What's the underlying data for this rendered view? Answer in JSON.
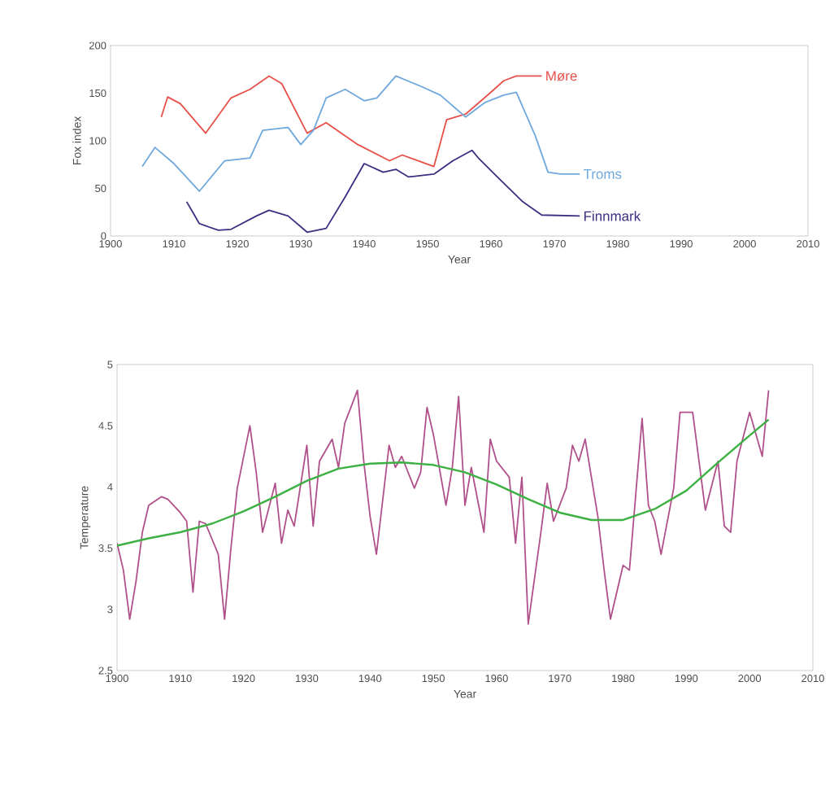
{
  "chart_data": [
    {
      "type": "line",
      "xlabel": "Year",
      "ylabel": "Fox index",
      "xlim": [
        1900,
        2010
      ],
      "ylim": [
        0,
        200
      ],
      "xticks": [
        1900,
        1910,
        1920,
        1930,
        1940,
        1950,
        1960,
        1970,
        1980,
        1990,
        2000,
        2010
      ],
      "yticks": [
        0,
        50,
        100,
        150,
        200
      ],
      "grid": false,
      "legend": false,
      "series": [
        {
          "name": "Møre",
          "color": "#e8504a",
          "x": [
            1908,
            1909,
            1911,
            1915,
            1919,
            1922,
            1925,
            1927,
            1931,
            1934,
            1939,
            1944,
            1946,
            1951,
            1953,
            1956,
            1960,
            1962,
            1964,
            1968
          ],
          "values": [
            125,
            146,
            139,
            108,
            145,
            154,
            168,
            160,
            108,
            119,
            96,
            79,
            85,
            73,
            122,
            128,
            151,
            163,
            168,
            168
          ]
        },
        {
          "name": "Troms",
          "color": "#6fa8dc",
          "x": [
            1905,
            1907,
            1910,
            1914,
            1918,
            1922,
            1924,
            1928,
            1930,
            1932,
            1934,
            1937,
            1940,
            1942,
            1945,
            1949,
            1952,
            1956,
            1959,
            1962,
            1964,
            1967,
            1969,
            1971,
            1974
          ],
          "values": [
            73,
            93,
            76,
            47,
            79,
            82,
            111,
            114,
            96,
            111,
            145,
            154,
            142,
            145,
            168,
            157,
            148,
            125,
            140,
            148,
            151,
            105,
            67,
            65,
            65
          ]
        },
        {
          "name": "Finnmark",
          "color": "#3a2f80",
          "x": [
            1912,
            1914,
            1917,
            1919,
            1923,
            1925,
            1928,
            1931,
            1934,
            1937,
            1940,
            1943,
            1945,
            1947,
            1951,
            1954,
            1957,
            1958,
            1961,
            1965,
            1968,
            1974
          ],
          "values": [
            36,
            13,
            6,
            7,
            21,
            27,
            21,
            4,
            8,
            41,
            76,
            67,
            70,
            62,
            65,
            79,
            90,
            82,
            62,
            36,
            22,
            21
          ]
        }
      ]
    },
    {
      "type": "line",
      "xlabel": "Year",
      "ylabel": "Temperature",
      "xlim": [
        1900,
        2010
      ],
      "ylim": [
        2.5,
        5
      ],
      "xticks": [
        1900,
        1910,
        1920,
        1930,
        1940,
        1950,
        1960,
        1970,
        1980,
        1990,
        2000,
        2010
      ],
      "yticks": [
        2.5,
        3,
        3.5,
        4,
        4.5,
        5
      ],
      "grid": false,
      "legend": false,
      "series": [
        {
          "color": "#b0508a",
          "x": [
            1900,
            1901,
            1902,
            1903,
            1904,
            1905,
            1907,
            1908,
            1910,
            1911,
            1912,
            1913,
            1914,
            1916,
            1917,
            1918,
            1919,
            1921,
            1922,
            1923,
            1925,
            1926,
            1927,
            1928,
            1930,
            1931,
            1932,
            1934,
            1935,
            1936,
            1938,
            1939,
            1940,
            1941,
            1943,
            1944,
            1945,
            1947,
            1948,
            1949,
            1950,
            1952,
            1953,
            1954,
            1955,
            1956,
            1958,
            1959,
            1960,
            1962,
            1963,
            1964,
            1965,
            1967,
            1968,
            1969,
            1971,
            1972,
            1973,
            1974,
            1976,
            1977,
            1978,
            1980,
            1981,
            1983,
            1984,
            1985,
            1986,
            1988,
            1989,
            1991,
            1992,
            1993,
            1995,
            1996,
            1997,
            1998,
            2000,
            2001,
            2002,
            2003
          ],
          "values": [
            3.54,
            3.32,
            2.92,
            3.23,
            3.63,
            3.85,
            3.92,
            3.9,
            3.79,
            3.72,
            3.14,
            3.72,
            3.7,
            3.45,
            2.92,
            3.5,
            3.99,
            4.5,
            4.12,
            3.63,
            4.03,
            3.54,
            3.81,
            3.68,
            4.34,
            3.68,
            4.21,
            4.39,
            4.16,
            4.52,
            4.79,
            4.21,
            3.76,
            3.45,
            4.34,
            4.16,
            4.25,
            3.99,
            4.12,
            4.65,
            4.43,
            3.85,
            4.16,
            4.74,
            3.85,
            4.16,
            3.63,
            4.39,
            4.21,
            4.08,
            3.54,
            4.08,
            2.88,
            3.63,
            4.03,
            3.72,
            3.99,
            4.34,
            4.21,
            4.39,
            3.76,
            3.32,
            2.92,
            3.36,
            3.32,
            4.56,
            3.85,
            3.72,
            3.45,
            3.99,
            4.61,
            4.61,
            4.21,
            3.81,
            4.21,
            3.68,
            3.63,
            4.21,
            4.61,
            4.43,
            4.25,
            4.79
          ]
        },
        {
          "color": "#3cb043",
          "x": [
            1900,
            1905,
            1910,
            1915,
            1920,
            1925,
            1930,
            1935,
            1940,
            1945,
            1950,
            1955,
            1960,
            1965,
            1970,
            1975,
            1980,
            1985,
            1990,
            1995,
            2000,
            2003
          ],
          "values": [
            3.52,
            3.58,
            3.63,
            3.7,
            3.8,
            3.92,
            4.05,
            4.15,
            4.19,
            4.2,
            4.18,
            4.12,
            4.02,
            3.9,
            3.79,
            3.73,
            3.73,
            3.82,
            3.97,
            4.2,
            4.42,
            4.55
          ]
        }
      ]
    }
  ]
}
